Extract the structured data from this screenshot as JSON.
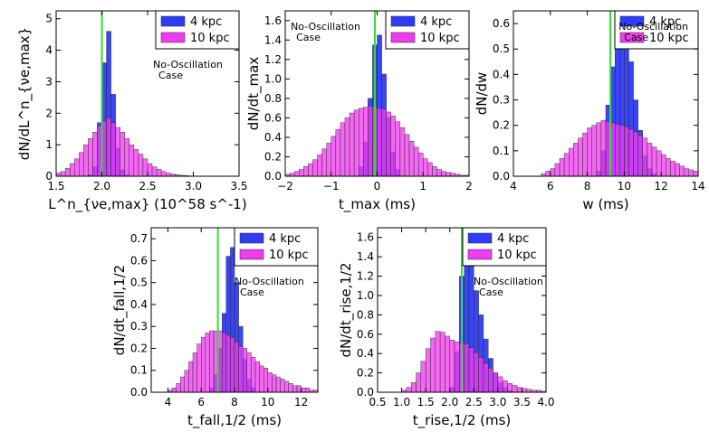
{
  "figure": {
    "legend_labels": [
      "4 kpc",
      "10 kpc"
    ],
    "colors": {
      "series_4kpc": "#2f3cf5",
      "series_10kpc": "#f03cf0",
      "marker_line": "#33dd33"
    }
  },
  "chart_data": [
    {
      "type": "bar",
      "title": "",
      "xlabel": "L^n_{νe,max} (10^58 s^-1)",
      "ylabel": "dN/dL^n_{νe,max}",
      "annotation": "No-Oscillation Case",
      "annotation_lines": [
        "No-Oscillation",
        "Case"
      ],
      "legend": "top-right",
      "xlim": [
        1.5,
        3.5
      ],
      "ylim": [
        0,
        5.25
      ],
      "xticks": [
        "1.5",
        "2.0",
        "2.5",
        "3.0",
        "3.5"
      ],
      "yticks": [
        "0",
        "1",
        "2",
        "3",
        "4",
        "5"
      ],
      "bin_start": 1.5,
      "bin_width": 0.05,
      "marker_x": 2.0,
      "series": [
        {
          "name": "4 kpc",
          "values": [
            0,
            0,
            0,
            0,
            0,
            0,
            0,
            0.05,
            0.3,
            1.7,
            3.6,
            4.6,
            2.6,
            0.9,
            0.2,
            0.05,
            0,
            0,
            0,
            0,
            0,
            0,
            0,
            0,
            0,
            0,
            0,
            0,
            0,
            0,
            0,
            0,
            0,
            0,
            0,
            0,
            0,
            0,
            0,
            0
          ]
        },
        {
          "name": "10 kpc",
          "values": [
            0.1,
            0.15,
            0.25,
            0.4,
            0.55,
            0.75,
            1.0,
            1.2,
            1.4,
            1.6,
            1.75,
            1.85,
            1.7,
            1.55,
            1.4,
            1.2,
            1.0,
            0.85,
            0.7,
            0.55,
            0.4,
            0.3,
            0.22,
            0.15,
            0.1,
            0.07,
            0.05,
            0.03,
            0.02,
            0.01,
            0,
            0,
            0,
            0,
            0,
            0,
            0,
            0,
            0,
            0
          ]
        }
      ]
    },
    {
      "type": "bar",
      "title": "",
      "xlabel": "t_max (ms)",
      "ylabel": "dN/dt_max",
      "annotation": "No-Oscillation Case",
      "annotation_lines": [
        "No-Oscillation",
        "Case"
      ],
      "legend": "top-right",
      "xlim": [
        -2,
        2
      ],
      "ylim": [
        0,
        1.7
      ],
      "xticks": [
        "−2",
        "−1",
        "0",
        "1",
        "2"
      ],
      "yticks": [
        "0.0",
        "0.2",
        "0.4",
        "0.6",
        "0.8",
        "1.0",
        "1.2",
        "1.4",
        "1.6"
      ],
      "bin_start": -2.0,
      "bin_width": 0.1,
      "marker_x": -0.05,
      "series": [
        {
          "name": "4 kpc",
          "values": [
            0,
            0,
            0,
            0,
            0,
            0,
            0,
            0,
            0,
            0,
            0,
            0,
            0,
            0,
            0,
            0,
            0.1,
            0.35,
            0.8,
            1.35,
            1.45,
            1.05,
            0.6,
            0.25,
            0.07,
            0,
            0,
            0,
            0,
            0,
            0,
            0,
            0,
            0,
            0,
            0,
            0,
            0,
            0,
            0
          ]
        },
        {
          "name": "10 kpc",
          "values": [
            0.02,
            0.03,
            0.05,
            0.07,
            0.1,
            0.13,
            0.17,
            0.22,
            0.28,
            0.34,
            0.41,
            0.48,
            0.55,
            0.6,
            0.65,
            0.68,
            0.7,
            0.71,
            0.72,
            0.72,
            0.7,
            0.69,
            0.66,
            0.62,
            0.56,
            0.5,
            0.43,
            0.36,
            0.3,
            0.24,
            0.18,
            0.14,
            0.1,
            0.07,
            0.05,
            0.04,
            0.03,
            0.02,
            0.01,
            0.01
          ]
        }
      ]
    },
    {
      "type": "bar",
      "title": "",
      "xlabel": "w (ms)",
      "ylabel": "dN/dw",
      "annotation": "No-Oscillation Case",
      "annotation_lines": [
        "No-Oscillation",
        "Case"
      ],
      "legend": "top-right",
      "xlim": [
        4,
        14
      ],
      "ylim": [
        0,
        0.65
      ],
      "xticks": [
        "4",
        "6",
        "8",
        "10",
        "12",
        "14"
      ],
      "yticks": [
        "0.0",
        "0.1",
        "0.2",
        "0.3",
        "0.4",
        "0.5",
        "0.6"
      ],
      "bin_start": 4.0,
      "bin_width": 0.25,
      "marker_x": 9.25,
      "series": [
        {
          "name": "4 kpc",
          "values": [
            0,
            0,
            0,
            0,
            0,
            0,
            0,
            0,
            0,
            0,
            0,
            0,
            0,
            0,
            0,
            0,
            0,
            0,
            0.02,
            0.1,
            0.28,
            0.43,
            0.58,
            0.6,
            0.55,
            0.45,
            0.3,
            0.18,
            0.08,
            0.03,
            0.01,
            0,
            0,
            0,
            0,
            0,
            0,
            0,
            0,
            0
          ]
        },
        {
          "name": "10 kpc",
          "values": [
            0,
            0,
            0,
            0,
            0,
            0,
            0.01,
            0.02,
            0.03,
            0.05,
            0.07,
            0.09,
            0.11,
            0.13,
            0.15,
            0.17,
            0.19,
            0.2,
            0.21,
            0.22,
            0.215,
            0.21,
            0.205,
            0.2,
            0.195,
            0.185,
            0.175,
            0.16,
            0.15,
            0.13,
            0.115,
            0.1,
            0.085,
            0.07,
            0.06,
            0.05,
            0.04,
            0.03,
            0.025,
            0.02
          ]
        }
      ]
    },
    {
      "type": "bar",
      "title": "",
      "xlabel": "t_fall,1/2 (ms)",
      "ylabel": "dN/dt_fall,1/2",
      "annotation": "No-Oscillation Case",
      "annotation_lines": [
        "No-Oscillation",
        "Case"
      ],
      "legend": "top-right",
      "xlim": [
        3,
        13
      ],
      "ylim": [
        0,
        0.75
      ],
      "xticks": [
        "4",
        "6",
        "8",
        "10",
        "12"
      ],
      "yticks": [
        "0.0",
        "0.1",
        "0.2",
        "0.3",
        "0.4",
        "0.5",
        "0.6",
        "0.7"
      ],
      "bin_start": 3.0,
      "bin_width": 0.25,
      "marker_x": 7.0,
      "series": [
        {
          "name": "4 kpc",
          "values": [
            0,
            0,
            0,
            0,
            0,
            0,
            0,
            0,
            0,
            0,
            0,
            0,
            0,
            0,
            0.02,
            0.08,
            0.2,
            0.36,
            0.62,
            0.66,
            0.5,
            0.3,
            0.15,
            0.06,
            0.02,
            0,
            0,
            0,
            0,
            0,
            0,
            0,
            0,
            0,
            0,
            0,
            0,
            0,
            0,
            0
          ]
        },
        {
          "name": "10 kpc",
          "values": [
            0,
            0,
            0,
            0,
            0.01,
            0.02,
            0.04,
            0.07,
            0.1,
            0.14,
            0.18,
            0.22,
            0.25,
            0.27,
            0.28,
            0.28,
            0.28,
            0.27,
            0.26,
            0.25,
            0.23,
            0.21,
            0.2,
            0.18,
            0.16,
            0.14,
            0.12,
            0.11,
            0.09,
            0.08,
            0.07,
            0.06,
            0.05,
            0.04,
            0.03,
            0.03,
            0.02,
            0.02,
            0.01,
            0.01
          ]
        }
      ]
    },
    {
      "type": "bar",
      "title": "",
      "xlabel": "t_rise,1/2 (ms)",
      "ylabel": "dN/dt_rise,1/2",
      "annotation": "No-Oscillation Case",
      "annotation_lines": [
        "No-Oscillation",
        "Case"
      ],
      "legend": "top-right",
      "xlim": [
        0.5,
        4.0
      ],
      "ylim": [
        0,
        1.7
      ],
      "xticks": [
        "0.5",
        "1.0",
        "1.5",
        "2.0",
        "2.5",
        "3.0",
        "3.5",
        "4.0"
      ],
      "yticks": [
        "0.0",
        "0.2",
        "0.4",
        "0.6",
        "0.8",
        "1.0",
        "1.2",
        "1.4",
        "1.6"
      ],
      "bin_start": 0.5,
      "bin_width": 0.1,
      "marker_x": 2.25,
      "series": [
        {
          "name": "4 kpc",
          "values": [
            0,
            0,
            0,
            0,
            0,
            0,
            0,
            0,
            0,
            0,
            0,
            0,
            0,
            0,
            0,
            0.05,
            0.42,
            1.2,
            1.4,
            1.3,
            1.05,
            0.8,
            0.55,
            0.35,
            0.2,
            0.1,
            0.05,
            0.02,
            0,
            0,
            0,
            0,
            0,
            0,
            0
          ]
        },
        {
          "name": "10 kpc",
          "values": [
            0,
            0,
            0,
            0,
            0,
            0.02,
            0.05,
            0.1,
            0.2,
            0.32,
            0.45,
            0.56,
            0.63,
            0.62,
            0.58,
            0.54,
            0.52,
            0.51,
            0.5,
            0.46,
            0.41,
            0.36,
            0.3,
            0.25,
            0.2,
            0.16,
            0.12,
            0.09,
            0.07,
            0.05,
            0.04,
            0.03,
            0.02,
            0.02,
            0.01
          ]
        }
      ]
    }
  ]
}
